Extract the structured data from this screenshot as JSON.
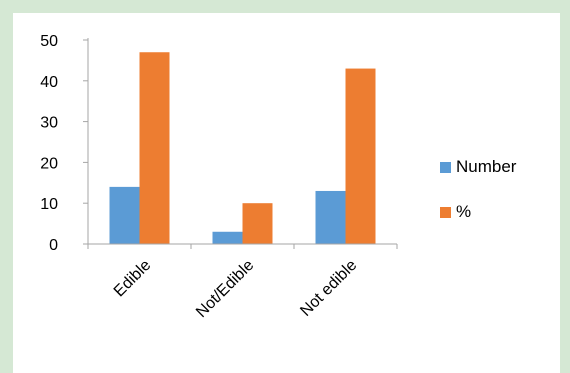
{
  "chart_data": {
    "type": "bar",
    "categories": [
      "Edible",
      "Not/Edible",
      "Not edible"
    ],
    "series": [
      {
        "name": "Number",
        "color": "#5b9bd5",
        "values": [
          14,
          3,
          13
        ]
      },
      {
        "name": "%",
        "color": "#ed7d31",
        "values": [
          47,
          10,
          43
        ]
      }
    ],
    "ylim": [
      0,
      50
    ],
    "yticks": [
      0,
      10,
      20,
      30,
      40,
      50
    ],
    "grid": false,
    "legend_position": "right"
  },
  "colors": {
    "background": "#d5e8d4",
    "plot_area": "#ffffff",
    "axis": "#a6a6a6"
  }
}
